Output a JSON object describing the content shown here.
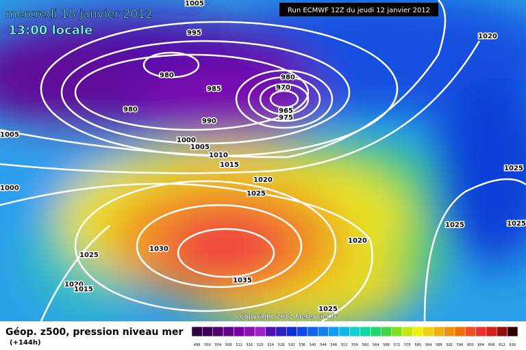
{
  "header": {
    "date": "mercredi 18 janvier 2012",
    "time": "13:00 locale",
    "run": "Run ECMWF 12Z du jeudi 12 janvier 2012"
  },
  "map": {
    "isobar_labels": [
      "1005",
      "995",
      "1020",
      "980",
      "980",
      "970",
      "985",
      "965",
      "975",
      "980",
      "990",
      "1005",
      "1000",
      "1005",
      "1010",
      "1015",
      "1025",
      "1020",
      "1000",
      "1025",
      "1025",
      "1025",
      "1020",
      "1030",
      "1025",
      "1035",
      "1020",
      "1015",
      "1025"
    ],
    "copyright": "Copyright 2012 Meteociel.fr"
  },
  "legend": {
    "title": "Géop. z500, pression niveau mer",
    "lead_time": "(+144h)",
    "scale": [
      496,
      500,
      504,
      508,
      512,
      516,
      520,
      524,
      528,
      532,
      536,
      540,
      544,
      548,
      552,
      556,
      560,
      564,
      568,
      572,
      576,
      580,
      584,
      588,
      592,
      596,
      600,
      604,
      608,
      612,
      616
    ]
  }
}
